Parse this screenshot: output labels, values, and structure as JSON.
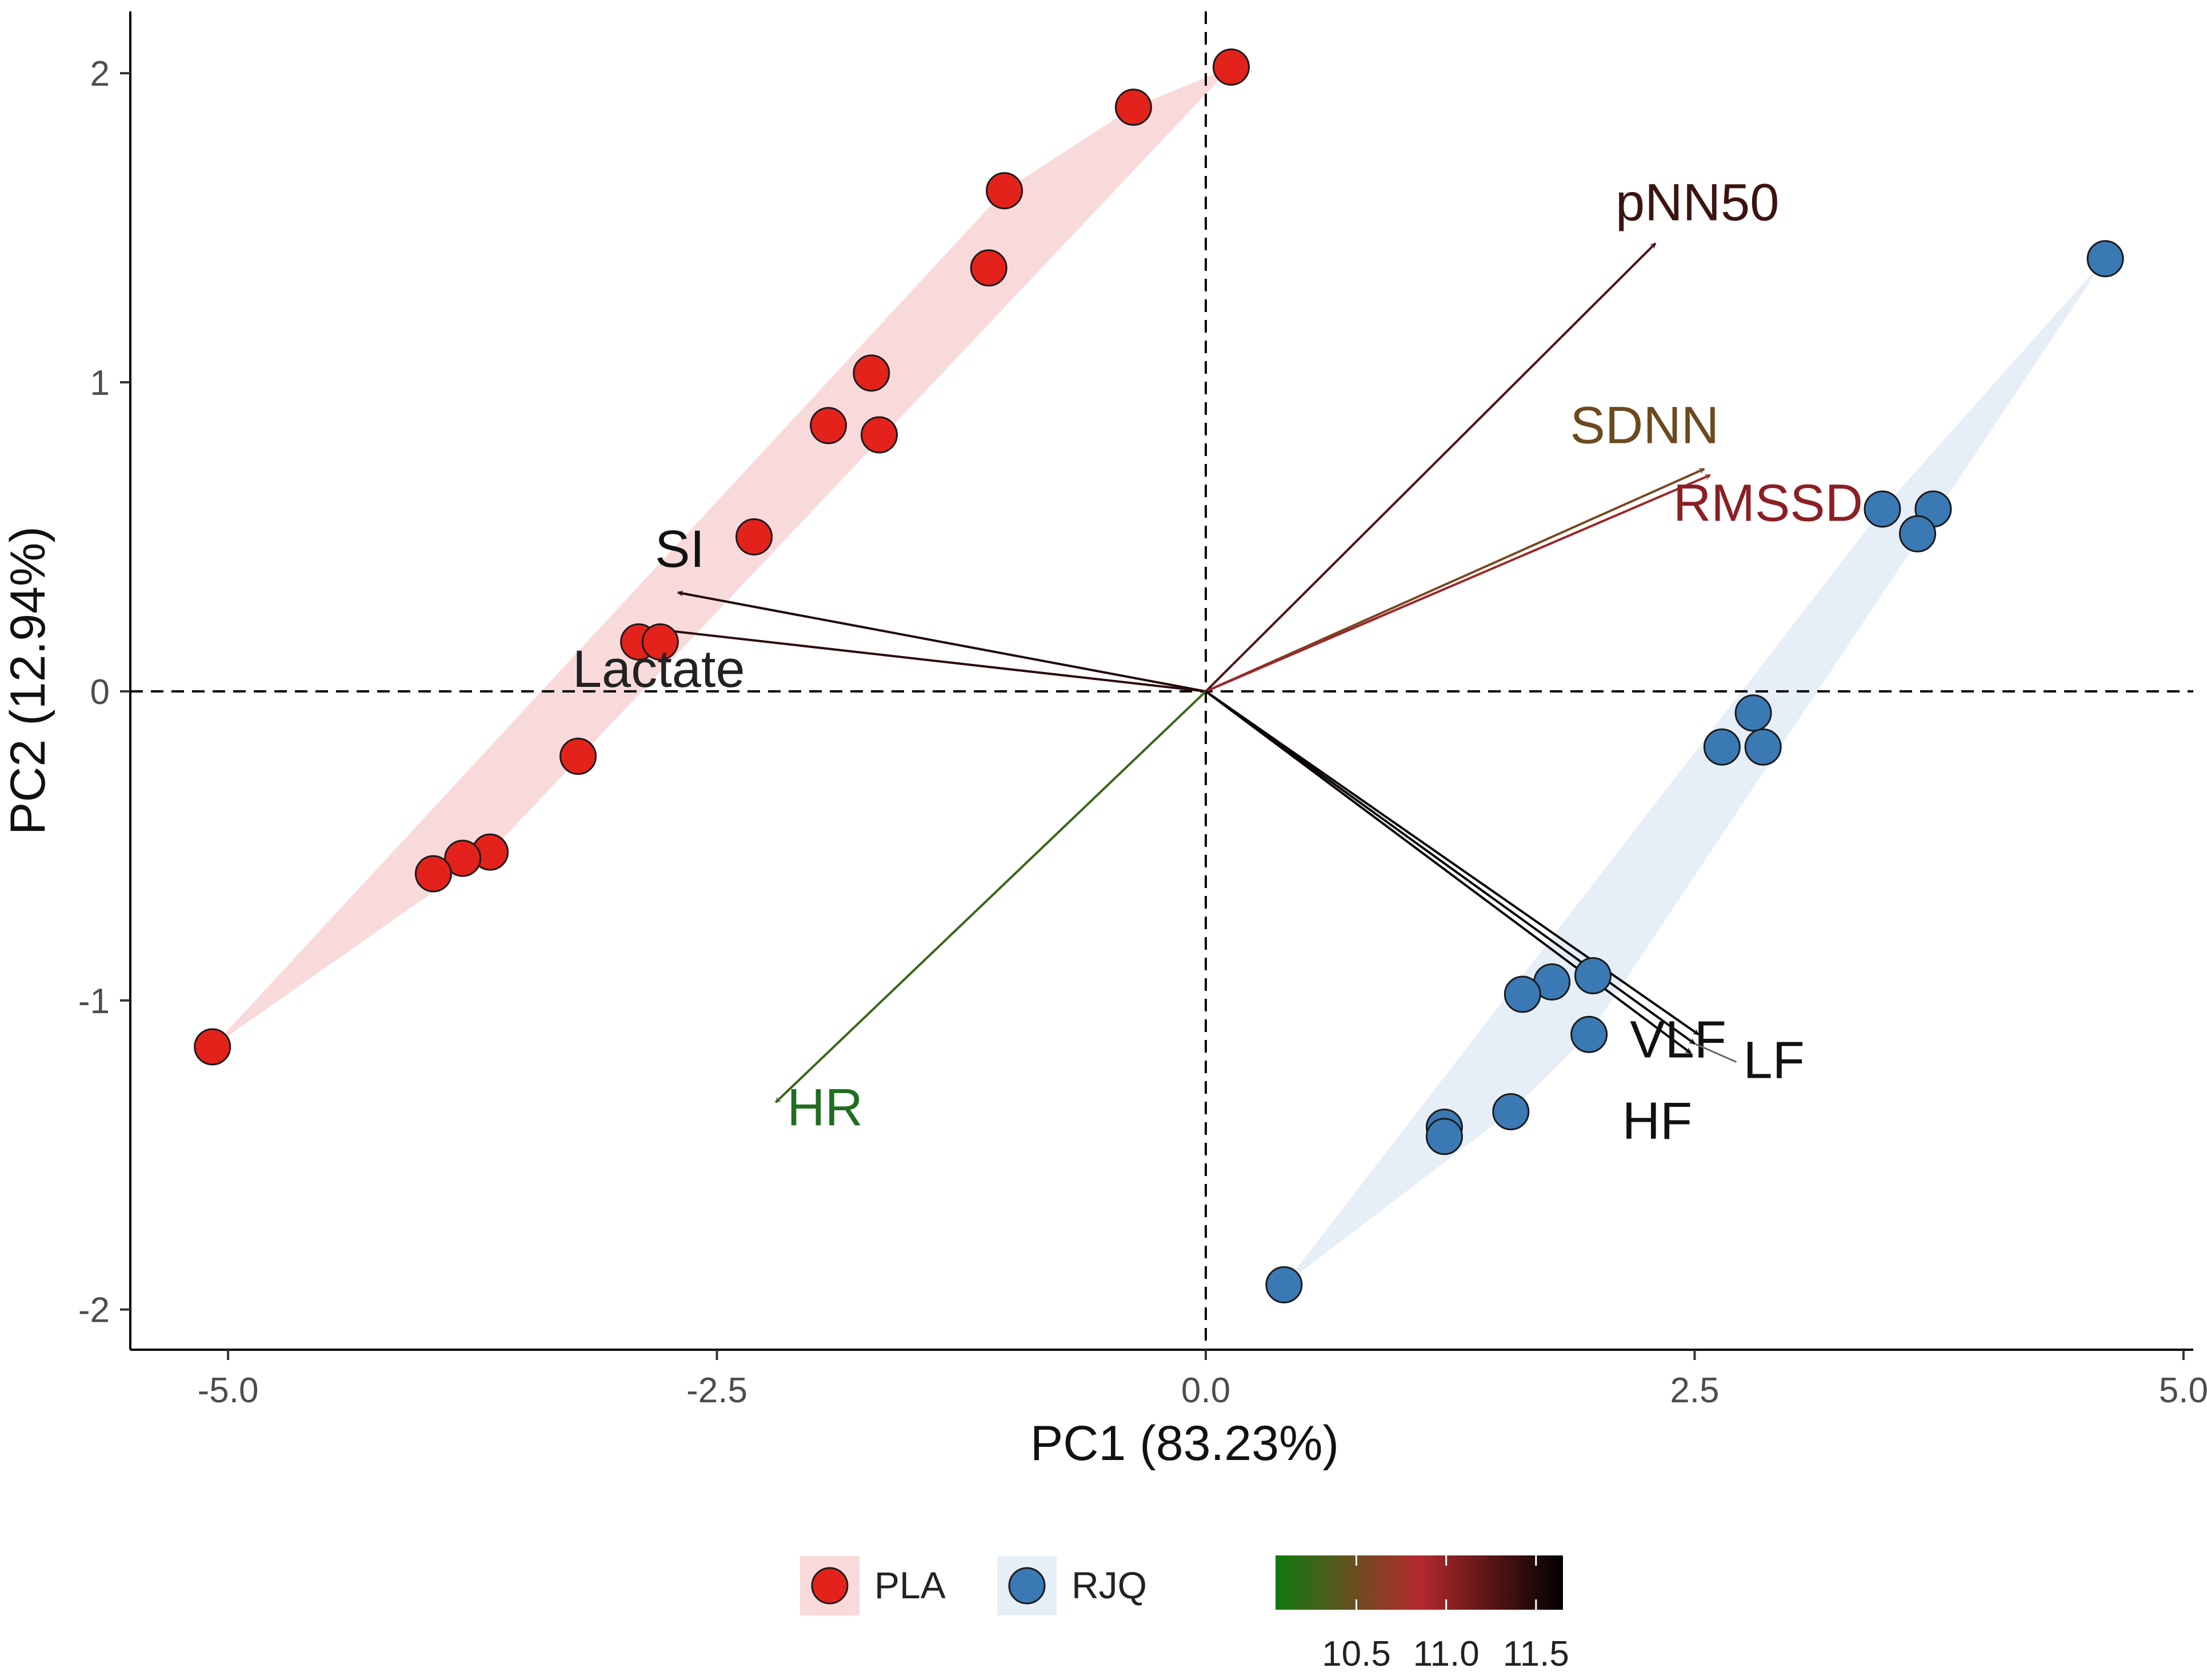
{
  "chart_data": {
    "type": "scatter",
    "subtype": "pca-biplot",
    "title": "",
    "xlabel": "PC1 (83.23%)",
    "ylabel": "PC2 (12.94%)",
    "xlim": [
      -5.5,
      5.05
    ],
    "ylim": [
      -2.13,
      2.2
    ],
    "xticks": [
      -5.0,
      -2.5,
      0.0,
      2.5,
      5.0
    ],
    "xtick_labels": [
      "-5.0",
      "-2.5",
      "0.0",
      "2.5",
      "5.0"
    ],
    "yticks": [
      -2,
      -1,
      0,
      1,
      2
    ],
    "ytick_labels": [
      "-2",
      "-1",
      "0",
      "1",
      "2"
    ],
    "grid": false,
    "reference_lines": {
      "x": 0,
      "y": 0,
      "style": "dashed"
    },
    "series": [
      {
        "name": "PLA",
        "color": "#e3221c",
        "hull_color": "#f9dada",
        "points": [
          {
            "x": 0.13,
            "y": 2.02
          },
          {
            "x": -0.37,
            "y": 1.89
          },
          {
            "x": -1.03,
            "y": 1.62
          },
          {
            "x": -1.11,
            "y": 1.37
          },
          {
            "x": -1.71,
            "y": 1.03
          },
          {
            "x": -1.93,
            "y": 0.86
          },
          {
            "x": -1.67,
            "y": 0.83
          },
          {
            "x": -2.31,
            "y": 0.5
          },
          {
            "x": -2.9,
            "y": 0.16
          },
          {
            "x": -2.79,
            "y": 0.16
          },
          {
            "x": -3.21,
            "y": -0.21
          },
          {
            "x": -3.66,
            "y": -0.52
          },
          {
            "x": -3.8,
            "y": -0.54
          },
          {
            "x": -3.95,
            "y": -0.59
          },
          {
            "x": -5.08,
            "y": -1.15
          }
        ]
      },
      {
        "name": "RJQ",
        "color": "#3a79b4",
        "hull_color": "#e6eef7",
        "points": [
          {
            "x": 4.6,
            "y": 1.4
          },
          {
            "x": 3.46,
            "y": 0.59
          },
          {
            "x": 3.72,
            "y": 0.59
          },
          {
            "x": 3.64,
            "y": 0.51
          },
          {
            "x": 2.8,
            "y": -0.07
          },
          {
            "x": 2.64,
            "y": -0.18
          },
          {
            "x": 2.85,
            "y": -0.18
          },
          {
            "x": 1.98,
            "y": -0.92
          },
          {
            "x": 1.77,
            "y": -0.94
          },
          {
            "x": 1.62,
            "y": -0.98
          },
          {
            "x": 1.96,
            "y": -1.11
          },
          {
            "x": 1.22,
            "y": -1.41
          },
          {
            "x": 1.56,
            "y": -1.36
          },
          {
            "x": 1.22,
            "y": -1.44
          },
          {
            "x": 0.4,
            "y": -1.92
          }
        ]
      }
    ],
    "loadings": [
      {
        "name": "pNN50",
        "x": 2.3,
        "y": 1.45,
        "value": 11.3,
        "label_color": "#3b1410"
      },
      {
        "name": "SDNN",
        "x": 2.55,
        "y": 0.72,
        "value": 10.55,
        "label_color": "#6b4a1e"
      },
      {
        "name": "RMSSD",
        "x": 2.58,
        "y": 0.7,
        "value": 10.95,
        "label_color": "#8b1f24"
      },
      {
        "name": "SI",
        "x": -2.7,
        "y": 0.32,
        "value": 11.5,
        "label_color": "#111111"
      },
      {
        "name": "Lactate",
        "x": -2.8,
        "y": 0.2,
        "value": 11.45,
        "label_color": "#222222"
      },
      {
        "name": "HR",
        "x": -2.2,
        "y": -1.33,
        "value": 10.25,
        "label_color": "#1f6e1f"
      },
      {
        "name": "VLF",
        "x": 2.52,
        "y": -1.11,
        "value": 11.6,
        "label_color": "#111111"
      },
      {
        "name": "LF",
        "x": 2.5,
        "y": -1.14,
        "value": 11.6,
        "label_color": "#111111"
      },
      {
        "name": "HF",
        "x": 2.48,
        "y": -1.17,
        "value": 11.6,
        "label_color": "#111111"
      }
    ],
    "legend": {
      "placement": "bottom",
      "groups": [
        "PLA",
        "RJQ"
      ],
      "colorbar": {
        "range": [
          10.05,
          11.65
        ],
        "ticks": [
          10.5,
          11.0,
          11.5
        ],
        "tick_labels": [
          "10.5",
          "11.0",
          "11.5"
        ],
        "colors": [
          "#0f7a0f",
          "#b42a2e",
          "#000000"
        ]
      }
    }
  }
}
